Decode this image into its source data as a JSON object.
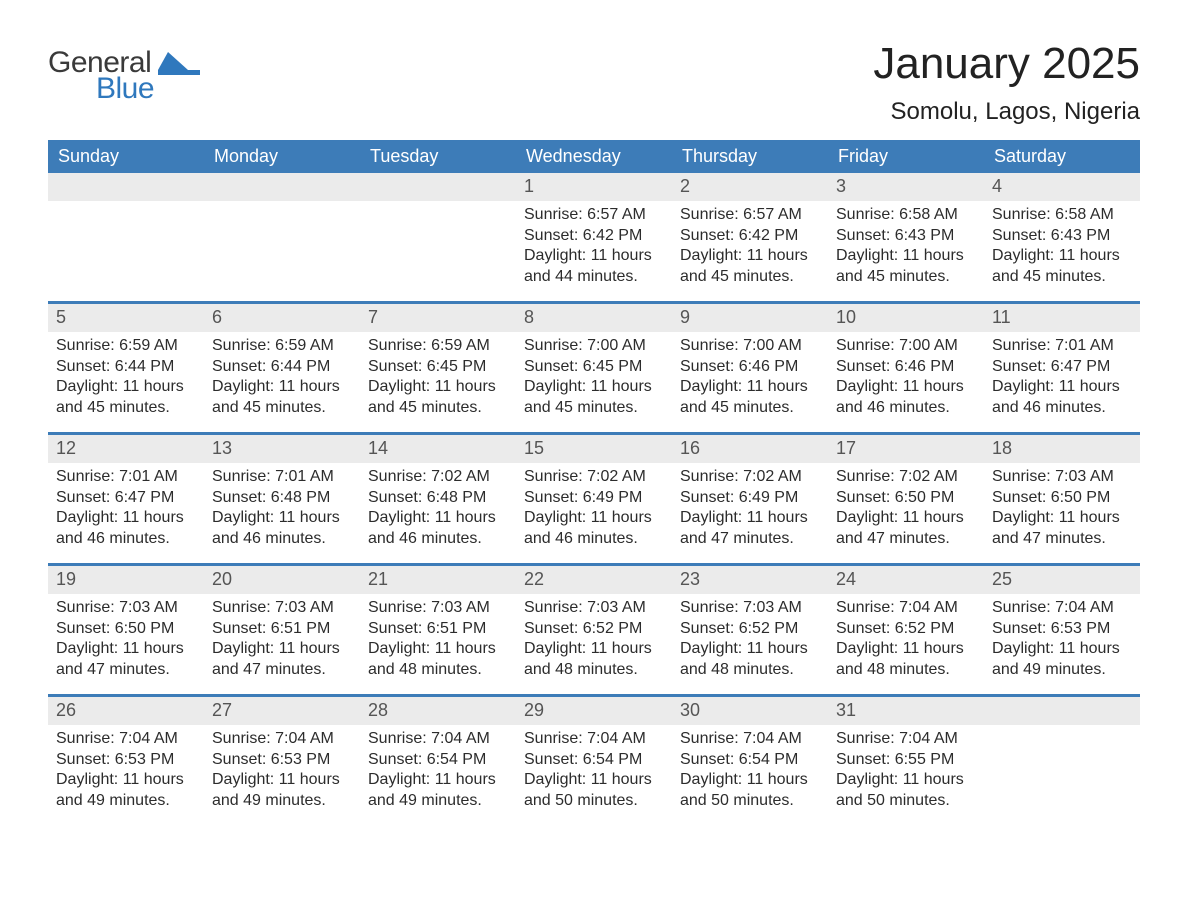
{
  "logo": {
    "text_general": "General",
    "text_blue": "Blue",
    "accent_color": "#2f78bd"
  },
  "header": {
    "month_title": "January 2025",
    "location": "Somolu, Lagos, Nigeria"
  },
  "colors": {
    "header_bg": "#3d7cb8",
    "header_text": "#ffffff",
    "daynum_bg": "#ebebeb",
    "daynum_text": "#555555",
    "body_text": "#2c2c2c",
    "page_bg": "#ffffff",
    "week_separator": "#3d7cb8"
  },
  "typography": {
    "title_fontsize": 44,
    "location_fontsize": 24,
    "th_fontsize": 18,
    "daynum_fontsize": 18,
    "body_fontsize": 16,
    "font_family": "Arial"
  },
  "calendar": {
    "columns": [
      "Sunday",
      "Monday",
      "Tuesday",
      "Wednesday",
      "Thursday",
      "Friday",
      "Saturday"
    ],
    "weeks": [
      [
        null,
        null,
        null,
        {
          "d": "1",
          "sr": "Sunrise: 6:57 AM",
          "ss": "Sunset: 6:42 PM",
          "dl1": "Daylight: 11 hours",
          "dl2": "and 44 minutes."
        },
        {
          "d": "2",
          "sr": "Sunrise: 6:57 AM",
          "ss": "Sunset: 6:42 PM",
          "dl1": "Daylight: 11 hours",
          "dl2": "and 45 minutes."
        },
        {
          "d": "3",
          "sr": "Sunrise: 6:58 AM",
          "ss": "Sunset: 6:43 PM",
          "dl1": "Daylight: 11 hours",
          "dl2": "and 45 minutes."
        },
        {
          "d": "4",
          "sr": "Sunrise: 6:58 AM",
          "ss": "Sunset: 6:43 PM",
          "dl1": "Daylight: 11 hours",
          "dl2": "and 45 minutes."
        }
      ],
      [
        {
          "d": "5",
          "sr": "Sunrise: 6:59 AM",
          "ss": "Sunset: 6:44 PM",
          "dl1": "Daylight: 11 hours",
          "dl2": "and 45 minutes."
        },
        {
          "d": "6",
          "sr": "Sunrise: 6:59 AM",
          "ss": "Sunset: 6:44 PM",
          "dl1": "Daylight: 11 hours",
          "dl2": "and 45 minutes."
        },
        {
          "d": "7",
          "sr": "Sunrise: 6:59 AM",
          "ss": "Sunset: 6:45 PM",
          "dl1": "Daylight: 11 hours",
          "dl2": "and 45 minutes."
        },
        {
          "d": "8",
          "sr": "Sunrise: 7:00 AM",
          "ss": "Sunset: 6:45 PM",
          "dl1": "Daylight: 11 hours",
          "dl2": "and 45 minutes."
        },
        {
          "d": "9",
          "sr": "Sunrise: 7:00 AM",
          "ss": "Sunset: 6:46 PM",
          "dl1": "Daylight: 11 hours",
          "dl2": "and 45 minutes."
        },
        {
          "d": "10",
          "sr": "Sunrise: 7:00 AM",
          "ss": "Sunset: 6:46 PM",
          "dl1": "Daylight: 11 hours",
          "dl2": "and 46 minutes."
        },
        {
          "d": "11",
          "sr": "Sunrise: 7:01 AM",
          "ss": "Sunset: 6:47 PM",
          "dl1": "Daylight: 11 hours",
          "dl2": "and 46 minutes."
        }
      ],
      [
        {
          "d": "12",
          "sr": "Sunrise: 7:01 AM",
          "ss": "Sunset: 6:47 PM",
          "dl1": "Daylight: 11 hours",
          "dl2": "and 46 minutes."
        },
        {
          "d": "13",
          "sr": "Sunrise: 7:01 AM",
          "ss": "Sunset: 6:48 PM",
          "dl1": "Daylight: 11 hours",
          "dl2": "and 46 minutes."
        },
        {
          "d": "14",
          "sr": "Sunrise: 7:02 AM",
          "ss": "Sunset: 6:48 PM",
          "dl1": "Daylight: 11 hours",
          "dl2": "and 46 minutes."
        },
        {
          "d": "15",
          "sr": "Sunrise: 7:02 AM",
          "ss": "Sunset: 6:49 PM",
          "dl1": "Daylight: 11 hours",
          "dl2": "and 46 minutes."
        },
        {
          "d": "16",
          "sr": "Sunrise: 7:02 AM",
          "ss": "Sunset: 6:49 PM",
          "dl1": "Daylight: 11 hours",
          "dl2": "and 47 minutes."
        },
        {
          "d": "17",
          "sr": "Sunrise: 7:02 AM",
          "ss": "Sunset: 6:50 PM",
          "dl1": "Daylight: 11 hours",
          "dl2": "and 47 minutes."
        },
        {
          "d": "18",
          "sr": "Sunrise: 7:03 AM",
          "ss": "Sunset: 6:50 PM",
          "dl1": "Daylight: 11 hours",
          "dl2": "and 47 minutes."
        }
      ],
      [
        {
          "d": "19",
          "sr": "Sunrise: 7:03 AM",
          "ss": "Sunset: 6:50 PM",
          "dl1": "Daylight: 11 hours",
          "dl2": "and 47 minutes."
        },
        {
          "d": "20",
          "sr": "Sunrise: 7:03 AM",
          "ss": "Sunset: 6:51 PM",
          "dl1": "Daylight: 11 hours",
          "dl2": "and 47 minutes."
        },
        {
          "d": "21",
          "sr": "Sunrise: 7:03 AM",
          "ss": "Sunset: 6:51 PM",
          "dl1": "Daylight: 11 hours",
          "dl2": "and 48 minutes."
        },
        {
          "d": "22",
          "sr": "Sunrise: 7:03 AM",
          "ss": "Sunset: 6:52 PM",
          "dl1": "Daylight: 11 hours",
          "dl2": "and 48 minutes."
        },
        {
          "d": "23",
          "sr": "Sunrise: 7:03 AM",
          "ss": "Sunset: 6:52 PM",
          "dl1": "Daylight: 11 hours",
          "dl2": "and 48 minutes."
        },
        {
          "d": "24",
          "sr": "Sunrise: 7:04 AM",
          "ss": "Sunset: 6:52 PM",
          "dl1": "Daylight: 11 hours",
          "dl2": "and 48 minutes."
        },
        {
          "d": "25",
          "sr": "Sunrise: 7:04 AM",
          "ss": "Sunset: 6:53 PM",
          "dl1": "Daylight: 11 hours",
          "dl2": "and 49 minutes."
        }
      ],
      [
        {
          "d": "26",
          "sr": "Sunrise: 7:04 AM",
          "ss": "Sunset: 6:53 PM",
          "dl1": "Daylight: 11 hours",
          "dl2": "and 49 minutes."
        },
        {
          "d": "27",
          "sr": "Sunrise: 7:04 AM",
          "ss": "Sunset: 6:53 PM",
          "dl1": "Daylight: 11 hours",
          "dl2": "and 49 minutes."
        },
        {
          "d": "28",
          "sr": "Sunrise: 7:04 AM",
          "ss": "Sunset: 6:54 PM",
          "dl1": "Daylight: 11 hours",
          "dl2": "and 49 minutes."
        },
        {
          "d": "29",
          "sr": "Sunrise: 7:04 AM",
          "ss": "Sunset: 6:54 PM",
          "dl1": "Daylight: 11 hours",
          "dl2": "and 50 minutes."
        },
        {
          "d": "30",
          "sr": "Sunrise: 7:04 AM",
          "ss": "Sunset: 6:54 PM",
          "dl1": "Daylight: 11 hours",
          "dl2": "and 50 minutes."
        },
        {
          "d": "31",
          "sr": "Sunrise: 7:04 AM",
          "ss": "Sunset: 6:55 PM",
          "dl1": "Daylight: 11 hours",
          "dl2": "and 50 minutes."
        },
        null
      ]
    ]
  }
}
